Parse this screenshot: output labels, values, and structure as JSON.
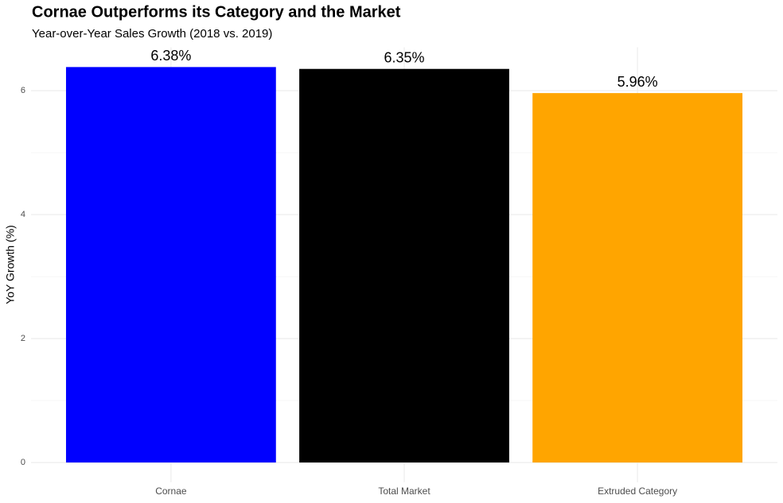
{
  "chart_data": {
    "type": "bar",
    "title": "Cornae Outperforms its Category and the Market",
    "subtitle": "Year-over-Year Sales Growth (2018 vs. 2019)",
    "y_label": "YoY Growth (%)",
    "categories": [
      "Cornae",
      "Total Market",
      "Extruded Category"
    ],
    "values": [
      6.38,
      6.35,
      5.96
    ],
    "value_labels": [
      "6.38%",
      "6.35%",
      "5.96%"
    ],
    "colors": [
      "#0000ff",
      "#000000",
      "#ffa500"
    ],
    "ylim": [
      -0.319,
      6.699
    ],
    "yticks": [
      0,
      2,
      4,
      6
    ],
    "yminorticks": [
      1,
      3,
      5
    ],
    "grid": true
  }
}
